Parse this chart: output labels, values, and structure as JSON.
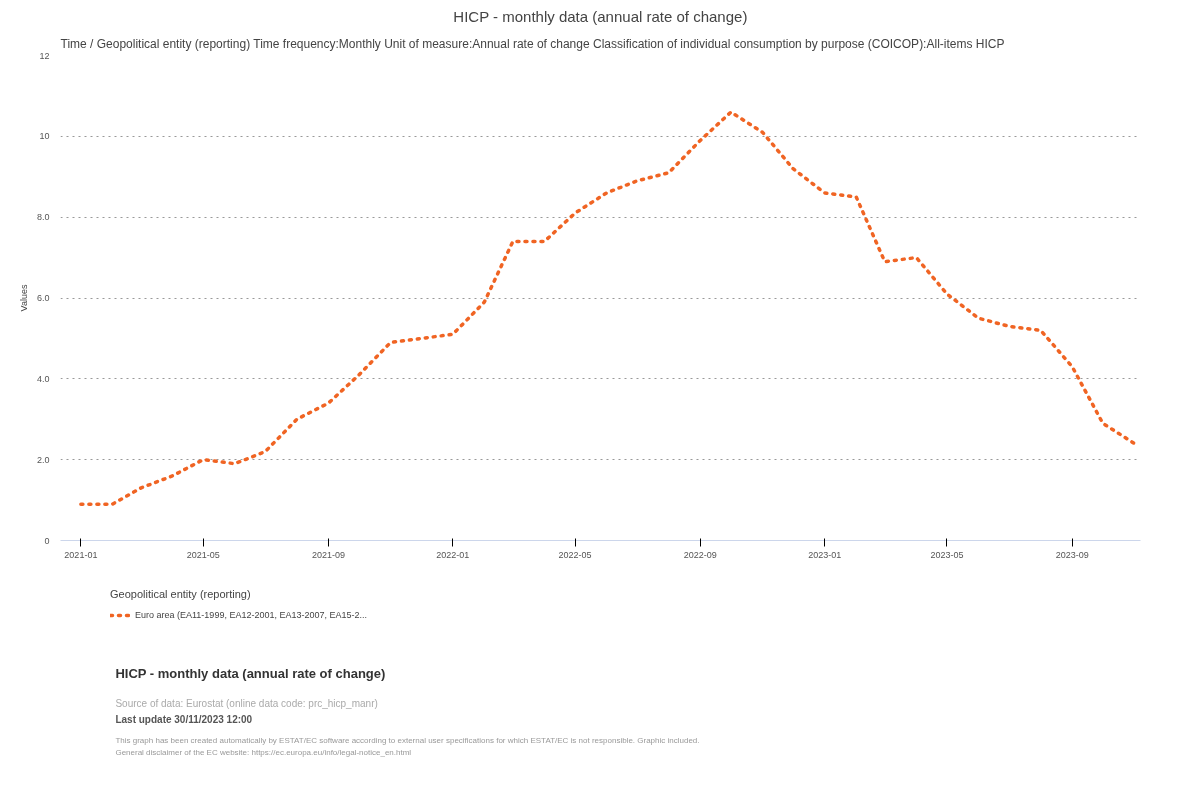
{
  "chart_data": {
    "type": "line",
    "title": "HICP - monthly data (annual rate of change)",
    "subtitle": "Time / Geopolitical entity (reporting)  Time frequency:Monthly  Unit of measure:Annual rate of change  Classification of individual consumption by purpose (COICOP):All-items HICP",
    "ylabel": "Values",
    "legend_title": "Geopolitical entity (reporting)",
    "x": [
      "2021-01",
      "2021-02",
      "2021-03",
      "2021-04",
      "2021-05",
      "2021-06",
      "2021-07",
      "2021-08",
      "2021-09",
      "2021-10",
      "2021-11",
      "2021-12",
      "2022-01",
      "2022-02",
      "2022-03",
      "2022-04",
      "2022-05",
      "2022-06",
      "2022-07",
      "2022-08",
      "2022-09",
      "2022-10",
      "2022-11",
      "2022-12",
      "2023-01",
      "2023-02",
      "2023-03",
      "2023-04",
      "2023-05",
      "2023-06",
      "2023-07",
      "2023-08",
      "2023-09",
      "2023-10",
      "2023-11"
    ],
    "series": [
      {
        "name": "Euro area (EA11-1999, EA12-2001, EA13-2007, EA15-2...",
        "color": "#f06423",
        "values": [
          0.9,
          0.9,
          1.3,
          1.6,
          2.0,
          1.9,
          2.2,
          3.0,
          3.4,
          4.1,
          4.9,
          5.0,
          5.1,
          5.9,
          7.4,
          7.4,
          8.1,
          8.6,
          8.9,
          9.1,
          9.9,
          10.6,
          10.1,
          9.2,
          8.6,
          8.5,
          6.9,
          7.0,
          6.1,
          5.5,
          5.3,
          5.2,
          4.3,
          2.9,
          2.4
        ]
      }
    ],
    "xlim": [
      "2020-12-12",
      "2023-11-07"
    ],
    "xticks": [
      "2021-01",
      "2021-05",
      "2021-09",
      "2022-01",
      "2022-05",
      "2022-09",
      "2023-01",
      "2023-05",
      "2023-09"
    ],
    "ylim": [
      0,
      12
    ],
    "yticks": [
      0,
      {
        "value": 2,
        "label": "2.0"
      },
      {
        "value": 4,
        "label": "4.0"
      },
      {
        "value": 6,
        "label": "6.0"
      },
      {
        "value": 8,
        "label": "8.0"
      },
      10,
      12
    ],
    "grid": "y",
    "legend": "bottom",
    "line_style": "dotted",
    "annotations": [
      "HICP - monthly data (annual rate of change)",
      "Source of data: Eurostat (online data code: prc_hicp_manr)",
      "Last update 30/11/2023 12:00",
      "This graph has been created automatically by ESTAT/EC software according to external user specifications for which ESTAT/EC is not responsible. Graphic included.",
      "General disclaimer of the EC website: https://ec.europa.eu/info/legal-notice_en.html"
    ]
  }
}
